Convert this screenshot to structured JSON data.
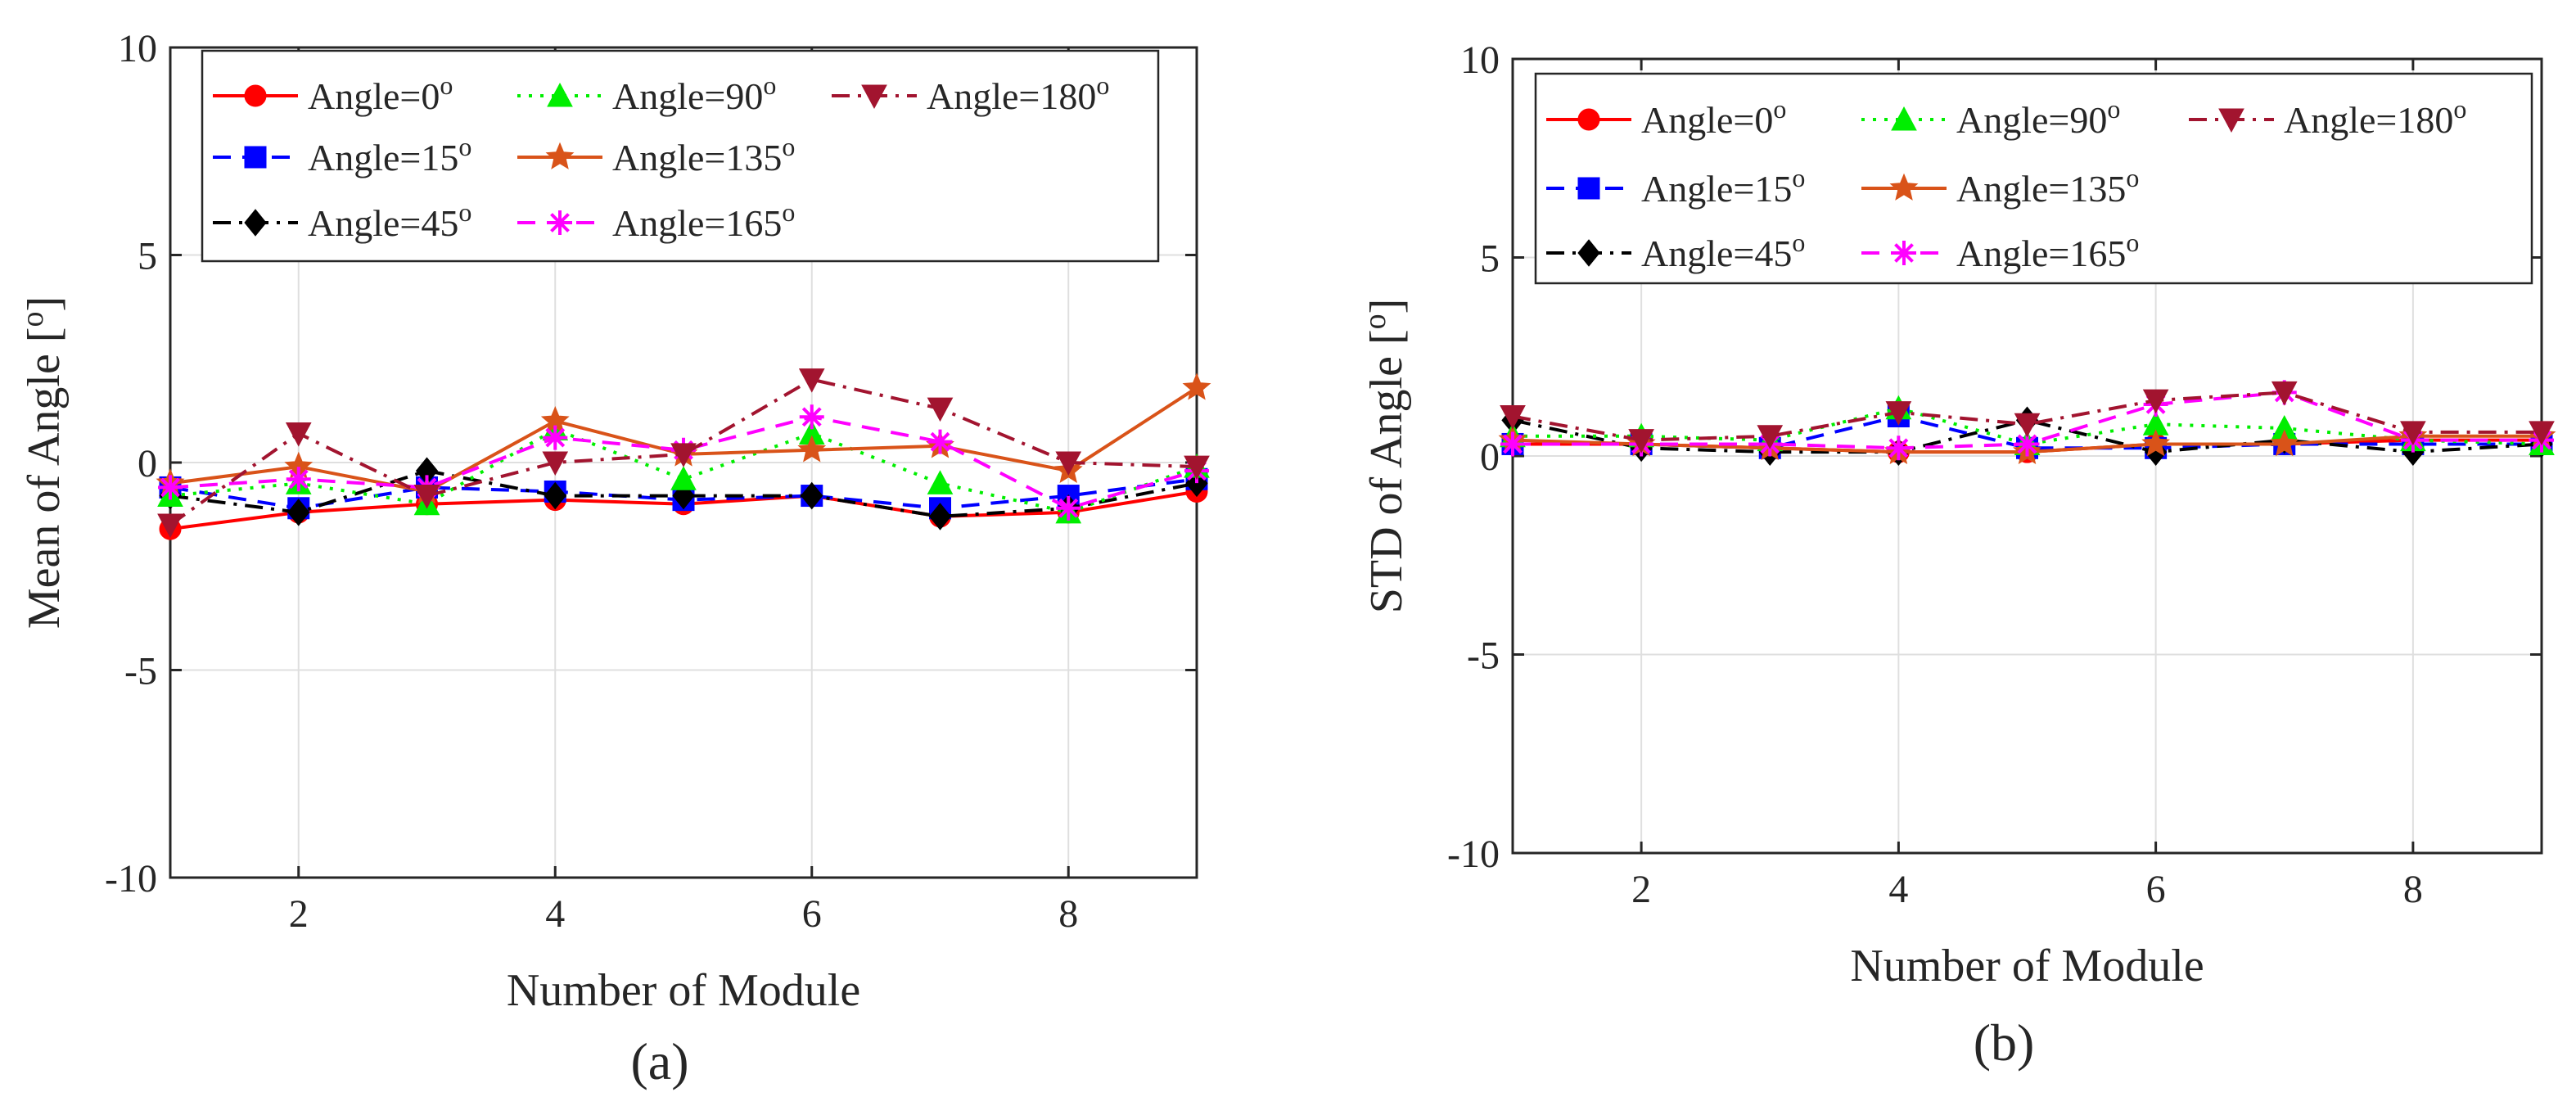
{
  "figure": {
    "charts": [
      {
        "id": "a",
        "panel_label": "(a)",
        "ylabel_text": "Mean of Angle [",
        "ylabel_unit": "o",
        "ylabel_close": "]"
      },
      {
        "id": "b",
        "panel_label": "(b)",
        "ylabel_text": "STD of Angle [",
        "ylabel_unit": "o",
        "ylabel_close": "]"
      }
    ]
  },
  "chart_data": [
    {
      "type": "line",
      "title": "",
      "panel": "(a)",
      "xlabel": "Number of Module",
      "ylabel": "Mean of Angle [o]",
      "xlim": [
        1,
        9
      ],
      "ylim": [
        -10,
        10
      ],
      "xticks": [
        2,
        4,
        6,
        8
      ],
      "yticks": [
        -10,
        -5,
        0,
        5,
        10
      ],
      "grid": true,
      "legend_position": "top",
      "x": [
        1,
        2,
        3,
        4,
        5,
        6,
        7,
        8,
        9
      ],
      "series": [
        {
          "name": "Angle=0",
          "superscript": "o",
          "color": "#ff0000",
          "dash": "solid",
          "marker": "circle",
          "values": [
            -1.6,
            -1.2,
            -1.0,
            -0.9,
            -1.0,
            -0.8,
            -1.3,
            -1.2,
            -0.7
          ]
        },
        {
          "name": "Angle=15",
          "superscript": "o",
          "color": "#0000ff",
          "dash": "dashed",
          "marker": "square",
          "values": [
            -0.6,
            -1.1,
            -0.6,
            -0.7,
            -0.9,
            -0.8,
            -1.1,
            -0.8,
            -0.4
          ]
        },
        {
          "name": "Angle=45",
          "superscript": "o",
          "color": "#000000",
          "dash": "dashdot",
          "marker": "diamond",
          "values": [
            -0.8,
            -1.2,
            -0.2,
            -0.8,
            -0.8,
            -0.8,
            -1.3,
            -1.1,
            -0.5
          ]
        },
        {
          "name": "Angle=90",
          "superscript": "o",
          "color": "#00ee00",
          "dash": "dotted",
          "marker": "triangle-up",
          "values": [
            -0.8,
            -0.5,
            -1.0,
            0.8,
            -0.4,
            0.7,
            -0.5,
            -1.2,
            -0.1
          ]
        },
        {
          "name": "Angle=135",
          "superscript": "o",
          "color": "#d95319",
          "dash": "solid",
          "marker": "star",
          "values": [
            -0.5,
            -0.1,
            -0.7,
            1.0,
            0.2,
            0.3,
            0.4,
            -0.2,
            1.8
          ]
        },
        {
          "name": "Angle=165",
          "superscript": "o",
          "color": "#ff00ff",
          "dash": "dashed",
          "marker": "asterisk",
          "values": [
            -0.6,
            -0.4,
            -0.6,
            0.6,
            0.3,
            1.1,
            0.5,
            -1.1,
            -0.2
          ]
        },
        {
          "name": "Angle=180",
          "superscript": "o",
          "color": "#a2142f",
          "dash": "dashdot",
          "marker": "triangle-down",
          "values": [
            -1.5,
            0.7,
            -0.8,
            0.0,
            0.2,
            2.0,
            1.3,
            0.0,
            -0.1
          ]
        }
      ]
    },
    {
      "type": "line",
      "title": "",
      "panel": "(b)",
      "xlabel": "Number of Module",
      "ylabel": "STD of Angle [o]",
      "xlim": [
        1,
        9
      ],
      "ylim": [
        -10,
        10
      ],
      "xticks": [
        2,
        4,
        6,
        8
      ],
      "yticks": [
        -10,
        -5,
        0,
        5,
        10
      ],
      "grid": true,
      "legend_position": "top",
      "x": [
        1,
        2,
        3,
        4,
        5,
        6,
        7,
        8,
        9
      ],
      "series": [
        {
          "name": "Angle=0",
          "superscript": "o",
          "color": "#ff0000",
          "dash": "solid",
          "marker": "circle",
          "values": [
            0.3,
            0.3,
            0.2,
            0.1,
            0.1,
            0.3,
            0.3,
            0.4,
            0.4
          ]
        },
        {
          "name": "Angle=15",
          "superscript": "o",
          "color": "#0000ff",
          "dash": "dashed",
          "marker": "square",
          "values": [
            0.3,
            0.3,
            0.2,
            1.0,
            0.2,
            0.2,
            0.3,
            0.3,
            0.3
          ]
        },
        {
          "name": "Angle=45",
          "superscript": "o",
          "color": "#000000",
          "dash": "dashdot",
          "marker": "diamond",
          "values": [
            0.9,
            0.2,
            0.1,
            0.1,
            0.9,
            0.1,
            0.4,
            0.1,
            0.3
          ]
        },
        {
          "name": "Angle=90",
          "superscript": "o",
          "color": "#00ee00",
          "dash": "dotted",
          "marker": "triangle-up",
          "values": [
            0.5,
            0.5,
            0.4,
            1.2,
            0.3,
            0.8,
            0.7,
            0.4,
            0.3
          ]
        },
        {
          "name": "Angle=135",
          "superscript": "o",
          "color": "#d95319",
          "dash": "solid",
          "marker": "star",
          "values": [
            0.4,
            0.3,
            0.2,
            0.1,
            0.1,
            0.3,
            0.3,
            0.5,
            0.5
          ]
        },
        {
          "name": "Angle=165",
          "superscript": "o",
          "color": "#ff00ff",
          "dash": "dashed",
          "marker": "asterisk",
          "values": [
            0.3,
            0.3,
            0.3,
            0.2,
            0.3,
            1.3,
            1.6,
            0.4,
            0.4
          ]
        },
        {
          "name": "Angle=180",
          "superscript": "o",
          "color": "#a2142f",
          "dash": "dashdot",
          "marker": "triangle-down",
          "values": [
            1.0,
            0.4,
            0.5,
            1.1,
            0.8,
            1.4,
            1.6,
            0.6,
            0.6
          ]
        }
      ]
    }
  ]
}
